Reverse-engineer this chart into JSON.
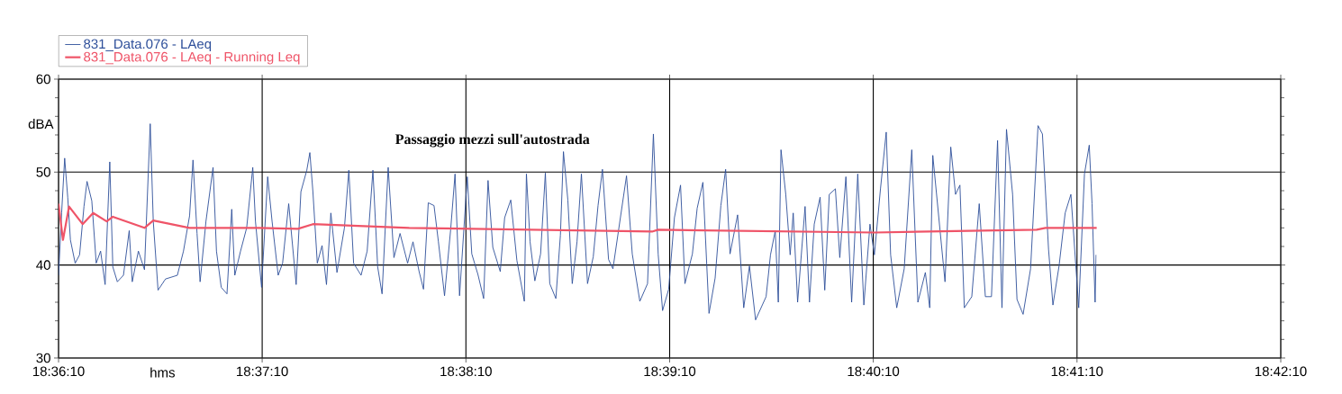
{
  "chart_data": {
    "type": "line",
    "xlabel": "hms",
    "ylabel": "dBA",
    "annotations": [
      "Passaggio mezzi sull'autostrada"
    ],
    "xlim": [
      18.60278,
      18.70278
    ],
    "ylim": [
      30,
      60
    ],
    "yticks": [
      30,
      40,
      50,
      60
    ],
    "xticks": [
      {
        "value": 18.60278,
        "label": "18:36:10"
      },
      {
        "value": 18.61944,
        "label": "18:37:10"
      },
      {
        "value": 18.63611,
        "label": "18:38:10"
      },
      {
        "value": 18.65278,
        "label": "18:39:10"
      },
      {
        "value": 18.66944,
        "label": "18:40:10"
      },
      {
        "value": 18.68611,
        "label": "18:41:10"
      },
      {
        "value": 18.70278,
        "label": "18:42:10"
      }
    ],
    "grid": true,
    "legend": "top",
    "series": [
      {
        "name": "831_Data.076 - LAeq",
        "color": "#2e4f9a",
        "x": [
          18.60278,
          18.60303,
          18.60328,
          18.60353,
          18.60375,
          18.60414,
          18.6045,
          18.60486,
          18.60511,
          18.6055,
          18.60586,
          18.60622,
          18.60659,
          18.60697,
          18.60722,
          18.60759,
          18.60809,
          18.60856,
          18.60881,
          18.60931,
          18.60981,
          18.61028,
          18.61053,
          18.61092,
          18.61153,
          18.6125,
          18.613,
          18.6135,
          18.61378,
          18.61411,
          18.61436,
          18.61484,
          18.61542,
          18.6157,
          18.61609,
          18.61656,
          18.61695,
          18.6172,
          18.61767,
          18.61817,
          18.61867,
          18.61889,
          18.61939,
          18.61989,
          18.62025,
          18.62075,
          18.62111,
          18.62161,
          18.62222,
          18.62261,
          18.62309,
          18.62334,
          18.62359,
          18.62395,
          18.62434,
          18.6247,
          18.62506,
          18.62556,
          18.62617,
          18.62653,
          18.62692,
          18.62753,
          18.62803,
          18.6285,
          18.62889,
          18.62925,
          18.62975,
          18.63022,
          18.63072,
          18.63134,
          18.63178,
          18.63228,
          18.63264,
          18.63303,
          18.6335,
          18.63386,
          18.63436,
          18.63486,
          18.63522,
          18.63559,
          18.63622,
          18.63659,
          18.63709,
          18.63756,
          18.63792,
          18.63831,
          18.63892,
          18.63928,
          18.63978,
          18.64028,
          18.64089,
          18.64106,
          18.64136,
          18.64175,
          18.64222,
          18.64261,
          18.64297,
          18.64347,
          18.64384,
          18.64409,
          18.64445,
          18.64481,
          18.6452,
          18.64556,
          18.64606,
          18.64653,
          18.64692,
          18.64728,
          18.64778,
          18.64814,
          18.64875,
          18.64925,
          18.64972,
          18.65034,
          18.65097,
          18.65145,
          18.65184,
          18.6522,
          18.6527,
          18.65317,
          18.65367,
          18.65403,
          18.65464,
          18.65503,
          18.6555,
          18.656,
          18.6565,
          18.65697,
          18.65736,
          18.65772,
          18.65834,
          18.65884,
          18.65931,
          18.65981,
          18.66067,
          18.66103,
          18.66142,
          18.66167,
          18.66189,
          18.66228,
          18.66264,
          18.66289,
          18.66325,
          18.66386,
          18.66422,
          18.66461,
          18.66509,
          18.66547,
          18.66584,
          18.66634,
          18.6667,
          18.6672,
          18.66767,
          18.66817,
          18.66867,
          18.66917,
          18.66953,
          18.67003,
          18.6705,
          18.67086,
          18.67136,
          18.67197,
          18.67259,
          18.67309,
          18.6737,
          18.67406,
          18.67431,
          18.67481,
          18.67531,
          18.67578,
          18.67617,
          18.67653,
          18.67689,
          18.6775,
          18.67811,
          18.67861,
          18.67911,
          18.67961,
          18.67997,
          18.68034,
          18.68084,
          18.6812,
          18.6817,
          18.68231,
          18.68292,
          18.68328,
          18.68378,
          18.68414,
          18.68464,
          18.68514,
          18.68561,
          18.68625,
          18.68672,
          18.68711,
          18.68734,
          18.68759,
          18.68767
        ],
        "values": [
          38.9,
          45.6,
          51.5,
          47.3,
          42.7,
          40.2,
          41.1,
          46.3,
          49,
          46.9,
          40.2,
          41.5,
          37.9,
          51.1,
          39.8,
          38.2,
          38.9,
          43.7,
          38.2,
          41.5,
          39.5,
          55.2,
          44.7,
          37.3,
          38.5,
          38.9,
          41.5,
          45.3,
          51.3,
          43.4,
          38.2,
          44.7,
          50.5,
          41.5,
          37.6,
          36.9,
          46,
          38.9,
          41.5,
          44,
          50.5,
          44.7,
          37.6,
          49.5,
          44.7,
          38.9,
          40.2,
          46.6,
          37.9,
          47.9,
          50.2,
          52.1,
          47.9,
          40.2,
          42.1,
          37.9,
          45.6,
          39.2,
          44,
          50.2,
          40.2,
          38.9,
          41.5,
          50.2,
          39.8,
          36.9,
          50.5,
          40.8,
          43.4,
          40.2,
          42.5,
          39.3,
          37.4,
          46.7,
          46.4,
          42.5,
          36.7,
          43.8,
          49.8,
          36.7,
          49.5,
          41.2,
          39,
          36.4,
          49.1,
          41.9,
          39.3,
          45.1,
          47,
          40.5,
          36.1,
          49.8,
          42.5,
          38.3,
          41.2,
          49.9,
          38,
          36.4,
          43.2,
          52.2,
          47,
          38,
          42.5,
          49.8,
          38,
          40.9,
          46.4,
          50.3,
          40.6,
          39.6,
          45.1,
          49.6,
          41.2,
          36.1,
          38,
          54.1,
          41.2,
          35.1,
          37.4,
          45.1,
          48.6,
          38,
          41.2,
          46.1,
          48.9,
          34.8,
          38.6,
          46.4,
          50.3,
          41.2,
          45.4,
          35.4,
          39.9,
          34.1,
          36.6,
          41.1,
          43.7,
          36,
          52.4,
          47.6,
          41.1,
          45.6,
          36,
          46.3,
          36,
          44.4,
          47.3,
          37.3,
          47.6,
          48.2,
          40.8,
          49.5,
          36,
          49.8,
          35.7,
          44.4,
          41.1,
          48.2,
          54.3,
          41.1,
          35.4,
          39.6,
          52.4,
          36,
          39.2,
          35.4,
          51.8,
          45,
          38.2,
          52.7,
          47.6,
          48.6,
          35.4,
          36.6,
          46.6,
          36.6,
          36.6,
          53.4,
          35.4,
          54.6,
          47.6,
          36.3,
          34.7,
          39.6,
          55,
          54.1,
          41.7,
          35.7,
          39.9,
          45.6,
          47.6,
          35.4,
          49.8,
          52.9,
          46.6,
          36,
          41.1
        ]
      },
      {
        "name": "831_Data.076 - LAeq - Running Leq",
        "color": "#ef5468",
        "x": [
          18.60278,
          18.60314,
          18.60364,
          18.60475,
          18.60561,
          18.60672,
          18.60722,
          18.60981,
          18.61053,
          18.6135,
          18.61917,
          18.62236,
          18.62359,
          18.63147,
          18.65134,
          18.65184,
          18.66953,
          18.68281,
          18.68353,
          18.68772
        ],
        "values": [
          46.6,
          42.7,
          46.3,
          44.4,
          45.6,
          44.7,
          45.2,
          44,
          44.8,
          44,
          44,
          43.9,
          44.4,
          44,
          43.6,
          43.8,
          43.5,
          43.8,
          44,
          44
        ]
      }
    ]
  }
}
